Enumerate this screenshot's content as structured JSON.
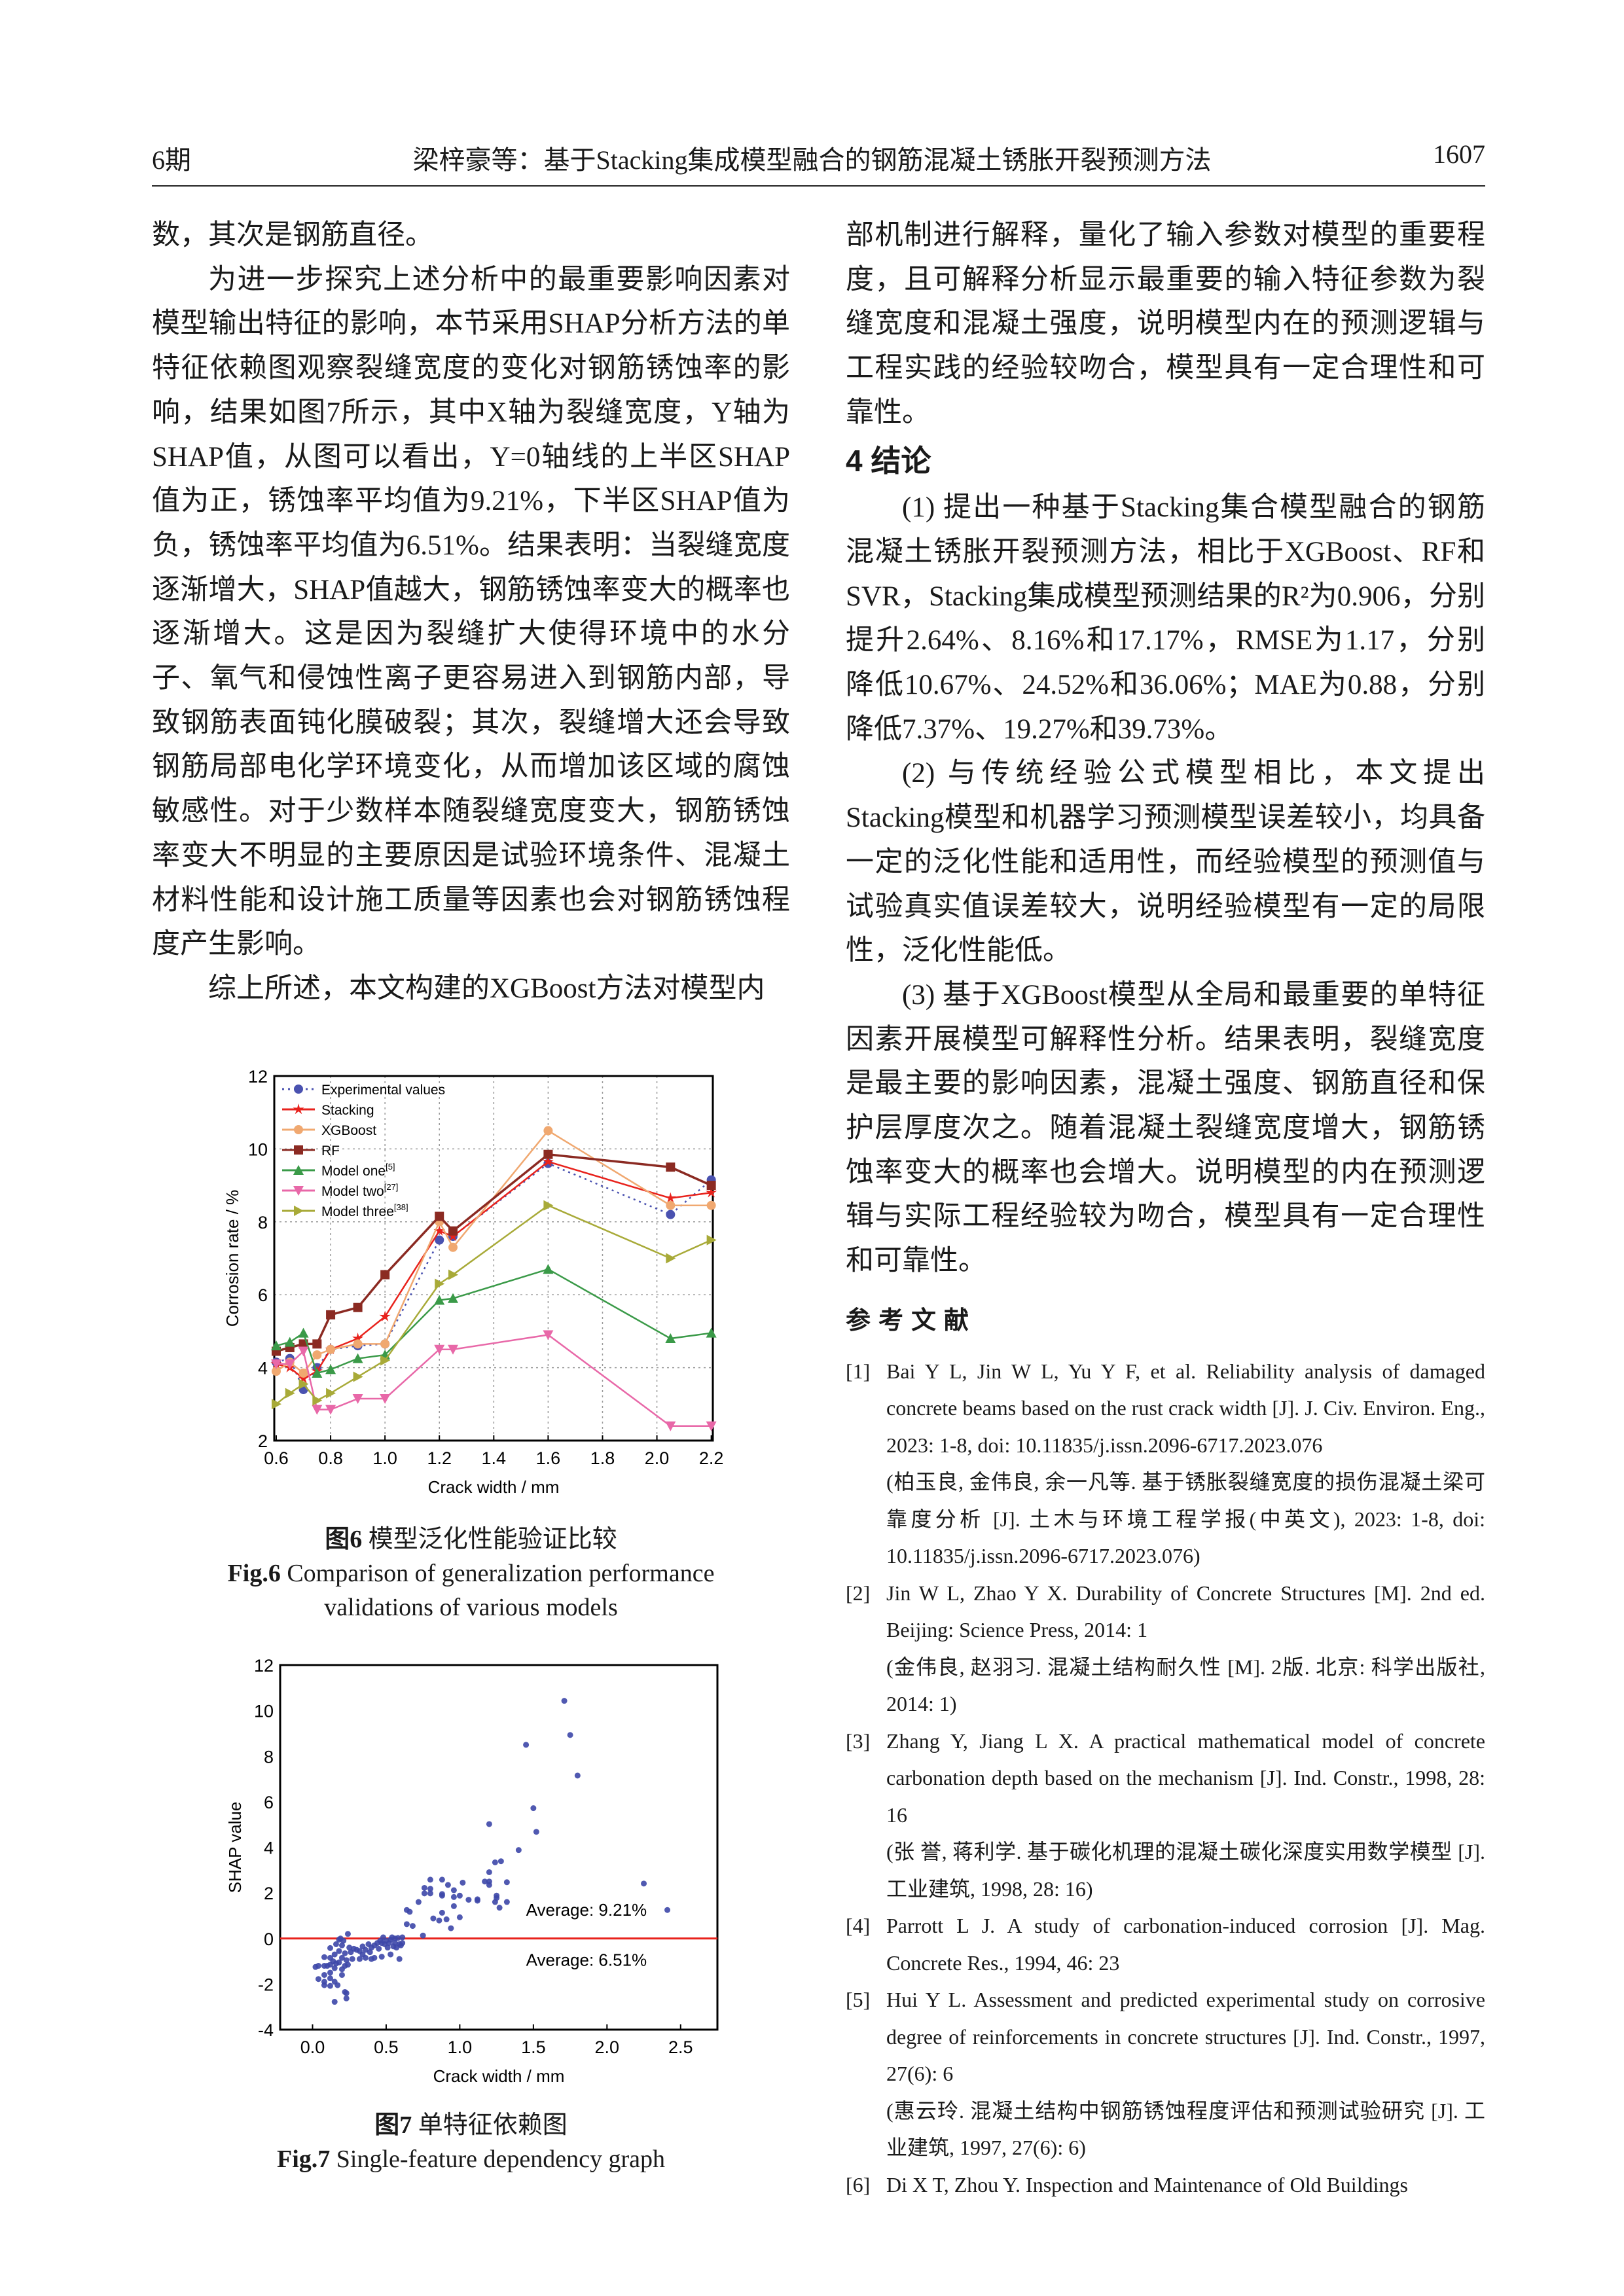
{
  "header": {
    "issue": "6期",
    "title": "梁梓豪等：基于Stacking集成模型融合的钢筋混凝土锈胀开裂预测方法",
    "page": "1607"
  },
  "left": {
    "p0": "数，其次是钢筋直径。",
    "p1": "为进一步探究上述分析中的最重要影响因素对模型输出特征的影响，本节采用SHAP分析方法的单特征依赖图观察裂缝宽度的变化对钢筋锈蚀率的影响，结果如图7所示，其中X轴为裂缝宽度，Y轴为SHAP值，从图可以看出，Y=0轴线的上半区SHAP值为正，锈蚀率平均值为9.21%，下半区SHAP值为负，锈蚀率平均值为6.51%。结果表明：当裂缝宽度逐渐增大，SHAP值越大，钢筋锈蚀率变大的概率也逐渐增大。这是因为裂缝扩大使得环境中的水分子、氧气和侵蚀性离子更容易进入到钢筋内部，导致钢筋表面钝化膜破裂；其次，裂缝增大还会导致钢筋局部电化学环境变化，从而增加该区域的腐蚀敏感性。对于少数样本随裂缝宽度变大，钢筋锈蚀率变大不明显的主要原因是试验环境条件、混凝土材料性能和设计施工质量等因素也会对钢筋锈蚀程度产生影响。",
    "p2": "综上所述，本文构建的XGBoost方法对模型内"
  },
  "right": {
    "p0": "部机制进行解释，量化了输入参数对模型的重要程度，且可解释分析显示最重要的输入特征参数为裂缝宽度和混凝土强度，说明模型内在的预测逻辑与工程实践的经验较吻合，模型具有一定合理性和可靠性。",
    "heading": "4  结论",
    "c1": "(1) 提出一种基于Stacking集合模型融合的钢筋混凝土锈胀开裂预测方法，相比于XGBoost、RF和SVR，Stacking集成模型预测结果的R²为0.906，分别提升2.64%、8.16%和17.17%，RMSE为1.17，分别降低10.67%、24.52%和36.06%；MAE为0.88，分别降低7.37%、19.27%和39.73%。",
    "c2": "(2) 与传统经验公式模型相比，本文提出Stacking模型和机器学习预测模型误差较小，均具备一定的泛化性能和适用性，而经验模型的预测值与试验真实值误差较大，说明经验模型有一定的局限性，泛化性能低。",
    "c3": "(3) 基于XGBoost模型从全局和最重要的单特征因素开展模型可解释性分析。结果表明，裂缝宽度是最主要的影响因素，混凝土强度、钢筋直径和保护层厚度次之。随着混凝土裂缝宽度增大，钢筋锈蚀率变大的概率也会增大。说明模型的内在预测逻辑与实际工程经验较为吻合，模型具有一定合理性和可靠性。",
    "refs_heading": "参考文献",
    "refs": [
      {
        "n": "[1]",
        "t": "Bai Y L, Jin W L, Yu Y F, et al. Reliability analysis of damaged concrete beams based on the rust crack width [J]. J. Civ. Environ. Eng., 2023: 1-8, doi: 10.11835/j.issn.2096-6717.2023.076",
        "cn": "(柏玉良, 金伟良, 余一凡等. 基于锈胀裂缝宽度的损伤混凝土梁可靠度分析 [J]. 土木与环境工程学报(中英文), 2023: 1-8, doi: 10.11835/j.issn.2096-6717.2023.076)"
      },
      {
        "n": "[2]",
        "t": "Jin W L, Zhao Y X. Durability of Concrete Structures [M]. 2nd ed. Beijing: Science Press, 2014: 1",
        "cn": "(金伟良, 赵羽习. 混凝土结构耐久性 [M]. 2版. 北京: 科学出版社, 2014: 1)"
      },
      {
        "n": "[3]",
        "t": "Zhang Y, Jiang L X. A practical mathematical model of concrete carbonation depth based on the mechanism [J]. Ind. Constr., 1998, 28: 16",
        "cn": "(张 誉, 蒋利学. 基于碳化机理的混凝土碳化深度实用数学模型 [J]. 工业建筑, 1998, 28: 16)"
      },
      {
        "n": "[4]",
        "t": "Parrott L J. A study of carbonation-induced corrosion [J]. Mag. Concrete Res., 1994, 46: 23",
        "cn": ""
      },
      {
        "n": "[5]",
        "t": "Hui Y L. Assessment and predicted experimental study on corrosive degree of reinforcements in concrete structures [J]. Ind. Constr., 1997, 27(6): 6",
        "cn": "(惠云玲. 混凝土结构中钢筋锈蚀程度评估和预测试验研究 [J]. 工业建筑, 1997, 27(6): 6)"
      },
      {
        "n": "[6]",
        "t": "Di X T, Zhou Y. Inspection and Maintenance of Old Buildings",
        "cn": ""
      }
    ]
  },
  "fig6": {
    "caption_cn_num": "图6",
    "caption_cn": "模型泛化性能验证比较",
    "caption_en_num": "Fig.6",
    "caption_en": "Comparison of generalization performance validations of various models"
  },
  "fig7": {
    "caption_cn_num": "图7",
    "caption_cn": "单特征依赖图",
    "caption_en_num": "Fig.7",
    "caption_en": "Single-feature dependency graph"
  },
  "chart_data": [
    {
      "type": "line",
      "xlabel": "Crack width / mm",
      "ylabel": "Corrosion rate / %",
      "xlim": [
        0.6,
        2.2
      ],
      "ylim": [
        2,
        12
      ],
      "xticks": [
        0.6,
        0.8,
        1.0,
        1.2,
        1.4,
        1.6,
        1.8,
        2.0,
        2.2
      ],
      "yticks": [
        2,
        4,
        6,
        8,
        10,
        12
      ],
      "grid": true,
      "legend": "top-left",
      "x": [
        0.6,
        0.65,
        0.7,
        0.75,
        0.8,
        0.9,
        1.0,
        1.2,
        1.25,
        1.6,
        2.05,
        2.2
      ],
      "series": [
        {
          "name": "Experimental values",
          "sup": "",
          "color": "#4a52b0",
          "marker": "circle",
          "dash": true,
          "values": [
            4.15,
            4.25,
            3.4,
            4.0,
            4.5,
            4.6,
            4.65,
            7.5,
            7.6,
            9.6,
            8.2,
            9.15
          ]
        },
        {
          "name": "Stacking",
          "sup": "",
          "color": "#e8221c",
          "marker": "star",
          "dash": false,
          "values": [
            4.1,
            4.0,
            3.7,
            3.9,
            4.5,
            4.8,
            5.4,
            7.75,
            7.6,
            9.65,
            8.65,
            8.8
          ]
        },
        {
          "name": "XGBoost",
          "sup": "",
          "color": "#f0a870",
          "marker": "circle",
          "dash": false,
          "values": [
            3.9,
            4.15,
            3.85,
            4.35,
            4.5,
            4.65,
            4.65,
            8.0,
            7.3,
            10.5,
            8.45,
            8.45
          ]
        },
        {
          "name": "RF",
          "sup": "",
          "color": "#8b2a22",
          "marker": "square",
          "dash": false,
          "values": [
            4.45,
            4.55,
            4.65,
            4.65,
            5.45,
            5.65,
            6.55,
            8.15,
            7.75,
            9.85,
            9.5,
            9.0
          ]
        },
        {
          "name": "Model one",
          "sup": "[5]",
          "color": "#3a9a48",
          "marker": "triangle-up",
          "dash": false,
          "values": [
            4.6,
            4.7,
            4.95,
            3.85,
            3.95,
            4.25,
            4.35,
            5.85,
            5.9,
            6.7,
            4.8,
            4.95
          ]
        },
        {
          "name": "Model two",
          "sup": "[27]",
          "color": "#e868a8",
          "marker": "triangle-down",
          "dash": false,
          "values": [
            4.1,
            4.1,
            4.45,
            2.85,
            2.85,
            3.15,
            3.15,
            4.5,
            4.5,
            4.9,
            2.4,
            2.4
          ]
        },
        {
          "name": "Model three",
          "sup": "[38]",
          "color": "#a8aa38",
          "marker": "triangle-right",
          "dash": false,
          "values": [
            3.0,
            3.3,
            3.55,
            3.1,
            3.3,
            3.75,
            4.2,
            6.3,
            6.55,
            8.45,
            7.0,
            7.5
          ]
        }
      ]
    },
    {
      "type": "scatter",
      "xlabel": "Crack width / mm",
      "ylabel": "SHAP value",
      "xlim": [
        -0.22,
        2.75
      ],
      "ylim": [
        -4,
        12
      ],
      "xticks": [
        0.0,
        0.5,
        1.0,
        1.5,
        2.0,
        2.5
      ],
      "yticks": [
        -4,
        -2,
        0,
        2,
        4,
        6,
        8,
        10,
        12
      ],
      "grid": false,
      "point_color": "#3d47a8",
      "line_color": "#e8221c",
      "hline_y": 0,
      "annotations": [
        "Average: 9.21%",
        "Average: 6.51%"
      ],
      "points": [
        [
          1.71,
          10.43
        ],
        [
          1.75,
          8.93
        ],
        [
          1.45,
          8.5
        ],
        [
          1.8,
          7.15
        ],
        [
          1.5,
          5.72
        ],
        [
          1.2,
          5.02
        ],
        [
          1.52,
          4.68
        ],
        [
          1.4,
          3.88
        ],
        [
          1.24,
          3.34
        ],
        [
          1.28,
          3.39
        ],
        [
          1.2,
          2.91
        ],
        [
          1.17,
          2.5
        ],
        [
          1.2,
          2.5
        ],
        [
          1.2,
          2.35
        ],
        [
          1.32,
          2.47
        ],
        [
          1.25,
          1.88
        ],
        [
          1.25,
          1.78
        ],
        [
          1.24,
          1.6
        ],
        [
          1.32,
          1.6
        ],
        [
          1.27,
          1.35
        ],
        [
          2.25,
          2.41
        ],
        [
          2.41,
          1.25
        ],
        [
          1.12,
          1.72
        ],
        [
          1.12,
          1.66
        ],
        [
          1.06,
          1.7
        ],
        [
          1.0,
          1.88
        ],
        [
          1.02,
          2.45
        ],
        [
          0.96,
          2.12
        ],
        [
          0.96,
          1.82
        ],
        [
          0.96,
          1.42
        ],
        [
          0.92,
          2.35
        ],
        [
          0.88,
          2.58
        ],
        [
          0.88,
          1.95
        ],
        [
          0.88,
          1.88
        ],
        [
          0.88,
          1.13
        ],
        [
          0.8,
          2.58
        ],
        [
          0.8,
          2.18
        ],
        [
          0.8,
          1.98
        ],
        [
          0.76,
          2.22
        ],
        [
          0.76,
          1.98
        ],
        [
          0.72,
          1.6
        ],
        [
          0.82,
          0.88
        ],
        [
          0.86,
          0.79
        ],
        [
          0.91,
          0.84
        ],
        [
          1.0,
          0.93
        ],
        [
          0.94,
          0.45
        ],
        [
          0.75,
          0.13
        ],
        [
          0.64,
          1.25
        ],
        [
          0.66,
          1.17
        ],
        [
          0.64,
          0.63
        ],
        [
          0.68,
          0.55
        ],
        [
          0.02,
          -1.25
        ],
        [
          0.04,
          -1.2
        ],
        [
          0.04,
          -1.78
        ],
        [
          0.08,
          -0.82
        ],
        [
          0.08,
          -1.2
        ],
        [
          0.08,
          -1.6
        ],
        [
          0.08,
          -1.9
        ],
        [
          0.08,
          -2.05
        ],
        [
          0.1,
          -1.2
        ],
        [
          0.12,
          -0.42
        ],
        [
          0.12,
          -0.85
        ],
        [
          0.12,
          -1.15
        ],
        [
          0.12,
          -1.5
        ],
        [
          0.12,
          -1.75
        ],
        [
          0.12,
          -2.08
        ],
        [
          0.14,
          -1.0
        ],
        [
          0.15,
          -0.7
        ],
        [
          0.15,
          -1.3
        ],
        [
          0.15,
          -1.9
        ],
        [
          0.15,
          -2.78
        ],
        [
          0.16,
          -0.25
        ],
        [
          0.16,
          -1.1
        ],
        [
          0.17,
          -2.05
        ],
        [
          0.18,
          -0.05
        ],
        [
          0.18,
          -0.55
        ],
        [
          0.18,
          -1.05
        ],
        [
          0.19,
          0
        ],
        [
          0.2,
          -0.3
        ],
        [
          0.2,
          -0.85
        ],
        [
          0.2,
          -1.35
        ],
        [
          0.2,
          -1.6
        ],
        [
          0.21,
          -0.1
        ],
        [
          0.22,
          -0.65
        ],
        [
          0.22,
          -1.2
        ],
        [
          0.22,
          -2.35
        ],
        [
          0.23,
          -0.95
        ],
        [
          0.23,
          -2.4
        ],
        [
          0.23,
          -2.63
        ],
        [
          0.24,
          0.2
        ],
        [
          0.24,
          -1.15
        ],
        [
          0.25,
          -0.4
        ],
        [
          0.26,
          -0.6
        ],
        [
          0.27,
          -0.9
        ],
        [
          0.28,
          -0.45
        ],
        [
          0.3,
          -0.5
        ],
        [
          0.32,
          -0.55
        ],
        [
          0.32,
          -0.9
        ],
        [
          0.34,
          -0.35
        ],
        [
          0.34,
          -0.7
        ],
        [
          0.36,
          -0.5
        ],
        [
          0.36,
          -0.85
        ],
        [
          0.38,
          -0.25
        ],
        [
          0.39,
          -0.6
        ],
        [
          0.4,
          -0.4
        ],
        [
          0.4,
          -0.9
        ],
        [
          0.42,
          -0.3
        ],
        [
          0.42,
          -0.85
        ],
        [
          0.44,
          -0.2
        ],
        [
          0.45,
          -0.45
        ],
        [
          0.46,
          -0.1
        ],
        [
          0.47,
          -0.2
        ],
        [
          0.47,
          -0.8
        ],
        [
          0.48,
          0.05
        ],
        [
          0.49,
          -0.25
        ],
        [
          0.5,
          -0.1
        ],
        [
          0.51,
          -0.4
        ],
        [
          0.52,
          -0.2
        ],
        [
          0.53,
          -0.05
        ],
        [
          0.53,
          -0.7
        ],
        [
          0.54,
          0.05
        ],
        [
          0.55,
          -0.35
        ],
        [
          0.56,
          0
        ],
        [
          0.56,
          -0.2
        ],
        [
          0.57,
          -0.4
        ],
        [
          0.58,
          0.02
        ],
        [
          0.59,
          -0.25
        ],
        [
          0.59,
          -0.9
        ],
        [
          0.6,
          -0.3
        ],
        [
          0.61,
          0.05
        ],
        [
          0.61,
          -0.2
        ]
      ]
    }
  ]
}
